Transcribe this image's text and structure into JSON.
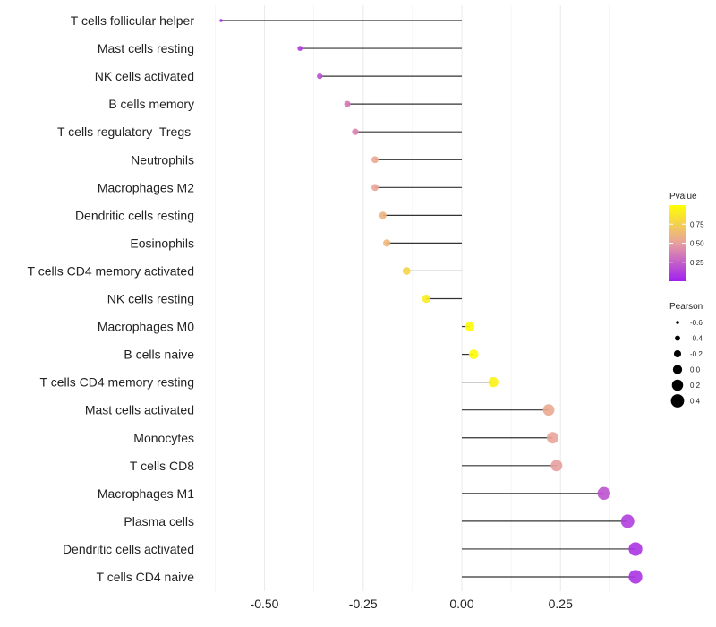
{
  "chart_data": {
    "type": "lollipop",
    "title": "",
    "xlabel": "",
    "ylabel": "",
    "xlim": [
      -0.62,
      0.47
    ],
    "x_ticks": [
      -0.5,
      -0.25,
      0.0,
      0.25
    ],
    "x_tick_labels": [
      "-0.50",
      "-0.25",
      "0.00",
      "0.25"
    ],
    "categories": [
      "T cells follicular helper",
      "Mast cells resting",
      "NK cells activated",
      "B cells memory",
      "T cells regulatory  Tregs ",
      "Neutrophils",
      "Macrophages M2",
      "Dendritic cells resting",
      "Eosinophils",
      "T cells CD4 memory activated",
      "NK cells resting",
      "Macrophages M0",
      "B cells naive",
      "T cells CD4 memory resting",
      "Mast cells activated",
      "Monocytes",
      "T cells CD8",
      "Macrophages M1",
      "Plasma cells",
      "Dendritic cells activated",
      "T cells CD4 naive"
    ],
    "values": [
      -0.61,
      -0.41,
      -0.36,
      -0.29,
      -0.27,
      -0.22,
      -0.22,
      -0.2,
      -0.19,
      -0.14,
      -0.09,
      0.02,
      0.03,
      0.08,
      0.22,
      0.23,
      0.24,
      0.36,
      0.42,
      0.44,
      0.44
    ],
    "pvalues": [
      0.02,
      0.1,
      0.18,
      0.35,
      0.4,
      0.55,
      0.52,
      0.6,
      0.62,
      0.78,
      0.9,
      0.99,
      0.98,
      0.93,
      0.55,
      0.52,
      0.5,
      0.2,
      0.12,
      0.08,
      0.08
    ],
    "legends": {
      "color": {
        "title": "Pvalue",
        "tick_labels": [
          "0.75",
          "0.50",
          "0.25"
        ],
        "tick_values": [
          0.75,
          0.5,
          0.25
        ],
        "range": [
          0.0,
          1.0
        ],
        "low_color": "#a020f0",
        "mid_color": "#e8a0a0",
        "high_color": "#ffff00"
      },
      "size": {
        "title": "Pearson",
        "values": [
          -0.6,
          -0.4,
          -0.2,
          0.0,
          0.2,
          0.4
        ],
        "labels": [
          "-0.6",
          "-0.4",
          "-0.2",
          "0.0",
          "0.2",
          "0.4"
        ]
      }
    },
    "grid": true
  }
}
